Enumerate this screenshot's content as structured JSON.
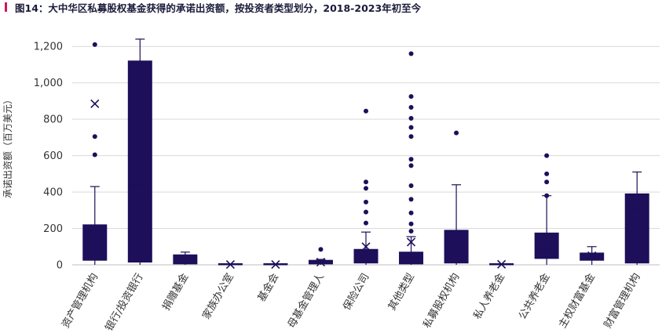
{
  "title": "图14：大中华区私募股权基金获得的承诺出资额，按投资者类型划分，2018-2023年初至今",
  "colors": {
    "accent": "#d4145a",
    "box_fill": "#1e0f5a",
    "grid": "#d9d9d9"
  },
  "chart_data": {
    "type": "box",
    "title": "图14：大中华区私募股权基金获得的承诺出资额，按投资者类型划分，2018-2023年初至今",
    "ylabel": "承诺出资额（百万美元）",
    "xlabel": "",
    "ylim": [
      0,
      1300
    ],
    "yticks": [
      0,
      200,
      400,
      600,
      800,
      1000,
      1200
    ],
    "ytick_labels": [
      "0",
      "200",
      "400",
      "600",
      "800",
      "1,000",
      "1,200"
    ],
    "grid": true,
    "categories": [
      "资产管理机构",
      "银行/投资银行",
      "捐赠基金",
      "家族办公室",
      "基金会",
      "母基金管理人",
      "保险公司",
      "其他类型",
      "私募股权机构",
      "私人养老金",
      "公共养老金",
      "主权财富基金",
      "财富管理机构"
    ],
    "boxes": [
      {
        "whisker_low": 0,
        "q1": 25,
        "median": 60,
        "q3": 220,
        "whisker_high": 430,
        "mean": 885,
        "outliers": [
          1210,
          705,
          605
        ]
      },
      {
        "whisker_low": 0,
        "q1": 15,
        "median": 440,
        "q3": 1120,
        "whisker_high": 1240,
        "mean": null,
        "outliers": []
      },
      {
        "whisker_low": 0,
        "q1": 5,
        "median": 45,
        "q3": 55,
        "whisker_high": 70,
        "mean": null,
        "outliers": []
      },
      {
        "whisker_low": 0,
        "q1": 0,
        "median": 2,
        "q3": 3,
        "whisker_high": 3,
        "mean": 2,
        "outliers": []
      },
      {
        "whisker_low": 0,
        "q1": 0,
        "median": 2,
        "q3": 3,
        "whisker_high": 3,
        "mean": 2,
        "outliers": []
      },
      {
        "whisker_low": 0,
        "q1": 5,
        "median": 15,
        "q3": 25,
        "whisker_high": 30,
        "mean": 15,
        "outliers": [
          85
        ]
      },
      {
        "whisker_low": 0,
        "q1": 10,
        "median": 45,
        "q3": 85,
        "whisker_high": 180,
        "mean": 100,
        "outliers": [
          845,
          455,
          420,
          345,
          290,
          230
        ]
      },
      {
        "whisker_low": 0,
        "q1": 5,
        "median": 40,
        "q3": 70,
        "whisker_high": 155,
        "mean": 125,
        "outliers": [
          1160,
          925,
          865,
          805,
          755,
          705,
          580,
          545,
          435,
          360,
          285,
          225,
          185
        ]
      },
      {
        "whisker_low": 0,
        "q1": 10,
        "median": 70,
        "q3": 190,
        "whisker_high": 440,
        "mean": null,
        "outliers": [
          725
        ]
      },
      {
        "whisker_low": 0,
        "q1": 0,
        "median": 3,
        "q3": 5,
        "whisker_high": 5,
        "mean": 3,
        "outliers": []
      },
      {
        "whisker_low": 0,
        "q1": 35,
        "median": 80,
        "q3": 175,
        "whisker_high": 380,
        "mean": null,
        "outliers": [
          600,
          500,
          455,
          380
        ]
      },
      {
        "whisker_low": 0,
        "q1": 25,
        "median": 45,
        "q3": 65,
        "whisker_high": 100,
        "mean": 50,
        "outliers": []
      },
      {
        "whisker_low": 0,
        "q1": 10,
        "median": 300,
        "q3": 390,
        "whisker_high": 510,
        "mean": null,
        "outliers": []
      }
    ]
  }
}
